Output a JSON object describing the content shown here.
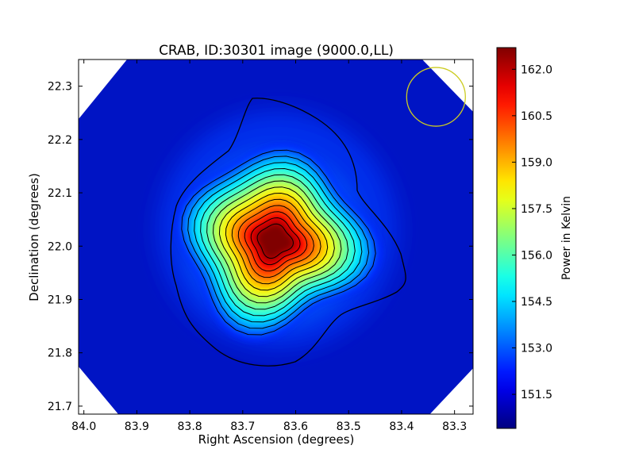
{
  "chart_data": {
    "type": "heatmap",
    "title": "CRAB, ID:30301 image (9000.0,LL)",
    "xlabel": "Right Ascension (degrees)",
    "ylabel": "Declination (degrees)",
    "xlim": [
      84.01,
      83.265
    ],
    "ylim": [
      21.685,
      22.35
    ],
    "x_ticks": [
      84.0,
      83.9,
      83.8,
      83.7,
      83.6,
      83.5,
      83.4,
      83.3
    ],
    "x_tick_labels": [
      "84.0",
      "83.9",
      "83.8",
      "83.7",
      "83.6",
      "83.5",
      "83.4",
      "83.3"
    ],
    "y_ticks": [
      21.7,
      21.8,
      21.9,
      22.0,
      22.1,
      22.2,
      22.3
    ],
    "y_tick_labels": [
      "21.7",
      "21.8",
      "21.9",
      "22.0",
      "22.1",
      "22.2",
      "22.3"
    ],
    "colormap": "jet",
    "colorbar": {
      "label": "Power in Kelvin",
      "range": [
        150.4,
        162.7
      ],
      "ticks": [
        151.5,
        153.0,
        154.5,
        156.0,
        157.5,
        159.0,
        160.5,
        162.0
      ],
      "tick_labels": [
        "151.5",
        "153.0",
        "154.5",
        "156.0",
        "157.5",
        "159.0",
        "160.5",
        "162.0"
      ]
    },
    "peak": {
      "ra": 83.64,
      "dec": 22.01,
      "value": 162.7
    },
    "background_value": 150.6,
    "contours": true,
    "beam_circle": {
      "ra": 83.335,
      "dec": 22.28,
      "color": "#cccc22"
    }
  }
}
